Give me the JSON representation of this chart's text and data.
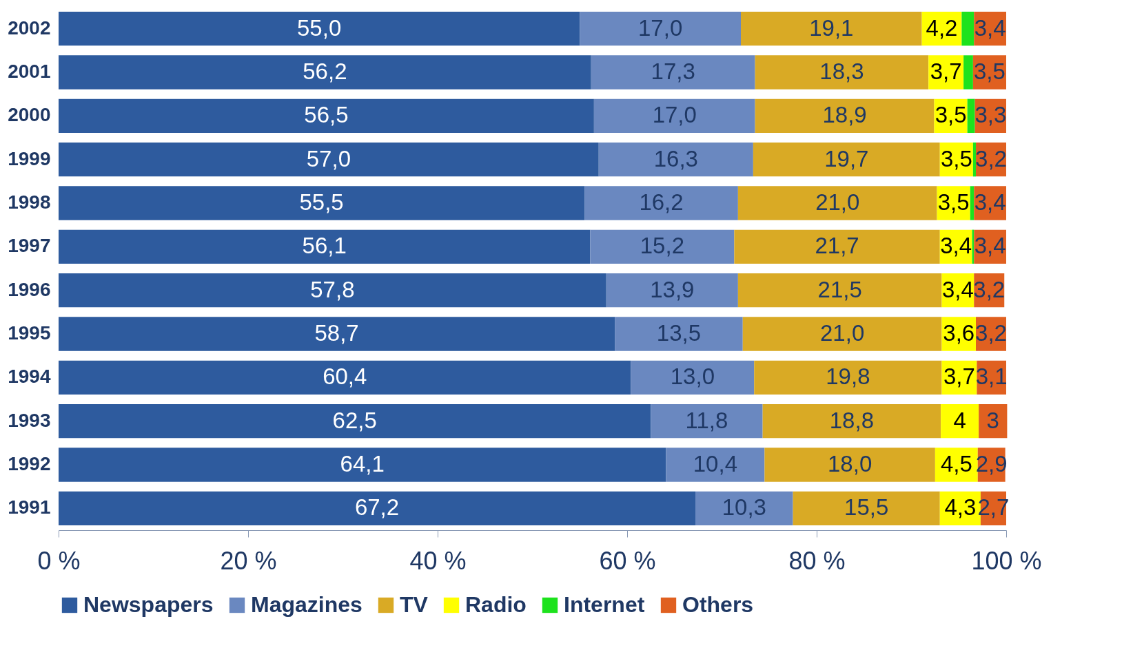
{
  "chart_data": {
    "type": "bar",
    "orientation": "horizontal",
    "stacked": true,
    "legend": "bottom",
    "categories": [
      "2002",
      "2001",
      "2000",
      "1999",
      "1998",
      "1997",
      "1996",
      "1995",
      "1994",
      "1993",
      "1992",
      "1991"
    ],
    "xlim": [
      0,
      100
    ],
    "xticks": [
      {
        "value": 0,
        "label": "0 %"
      },
      {
        "value": 20,
        "label": "20 %"
      },
      {
        "value": 40,
        "label": "40 %"
      },
      {
        "value": 60,
        "label": "60 %"
      },
      {
        "value": 80,
        "label": "80 %"
      },
      {
        "value": 100,
        "label": "100 %"
      }
    ],
    "series": [
      {
        "name": "Newspapers",
        "color": "#2e5b9e",
        "values": [
          55.0,
          56.2,
          56.5,
          57.0,
          55.5,
          56.1,
          57.8,
          58.7,
          60.4,
          62.5,
          64.1,
          67.2
        ],
        "value_labels": [
          "55,0",
          "56,2",
          "56,5",
          "57,0",
          "55,5",
          "56,1",
          "57,8",
          "58,7",
          "60,4",
          "62,5",
          "64,1",
          "67,2"
        ]
      },
      {
        "name": "Magazines",
        "color": "#6a88c0",
        "values": [
          17.0,
          17.3,
          17.0,
          16.3,
          16.2,
          15.2,
          13.9,
          13.5,
          13.0,
          11.8,
          10.4,
          10.3
        ],
        "value_labels": [
          "17,0",
          "17,3",
          "17,0",
          "16,3",
          "16,2",
          "15,2",
          "13,9",
          "13,5",
          "13,0",
          "11,8",
          "10,4",
          "10,3"
        ]
      },
      {
        "name": "TV",
        "color": "#d9aa25",
        "values": [
          19.1,
          18.3,
          18.9,
          19.7,
          21.0,
          21.7,
          21.5,
          21.0,
          19.8,
          18.8,
          18.0,
          15.5
        ],
        "value_labels": [
          "19,1",
          "18,3",
          "18,9",
          "19,7",
          "21,0",
          "21,7",
          "21,5",
          "21,0",
          "19,8",
          "18,8",
          "18,0",
          "15,5"
        ]
      },
      {
        "name": "Radio",
        "color": "#ffff00",
        "values": [
          4.2,
          3.7,
          3.5,
          3.5,
          3.5,
          3.4,
          3.4,
          3.6,
          3.7,
          4,
          4.5,
          4.3
        ],
        "value_labels": [
          "4,2",
          "3,7",
          "3,5",
          "3,5",
          "3,5",
          "3,4",
          "3,4",
          "3,6",
          "3,7",
          "4",
          "4,5",
          "4,3"
        ]
      },
      {
        "name": "Internet",
        "color": "#1de21d",
        "values": [
          1.3,
          1.0,
          0.8,
          0.3,
          0.4,
          0.2,
          null,
          null,
          null,
          null,
          null,
          null
        ]
      },
      {
        "name": "Others",
        "color": "#e06020",
        "values": [
          3.4,
          3.5,
          3.3,
          3.2,
          3.4,
          3.4,
          3.2,
          3.2,
          3.1,
          3,
          2.9,
          2.7
        ],
        "value_labels": [
          "3,4",
          "3,5",
          "3,3",
          "3,2",
          "3,4",
          "3,4",
          "3,2",
          "3,2",
          "3,1",
          "3",
          "2,9",
          "2,7"
        ]
      }
    ]
  }
}
